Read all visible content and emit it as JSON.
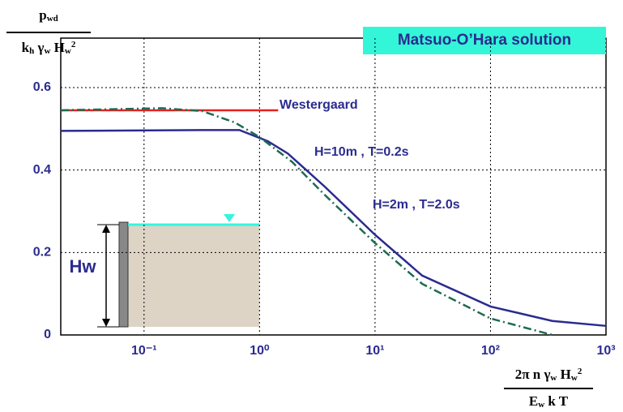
{
  "chart_data": {
    "type": "line",
    "title": "Matsuo-O’Hara solution",
    "ylabel": {
      "numerator": [
        {
          "text": "p",
          "style": "base"
        },
        {
          "text": "wd",
          "style": "sub"
        }
      ],
      "denominator": [
        {
          "text": "k",
          "style": "base"
        },
        {
          "text": "h",
          "style": "sub"
        },
        {
          "text": " γ",
          "style": "base"
        },
        {
          "text": "w",
          "style": "sub"
        },
        {
          "text": " H",
          "style": "base"
        },
        {
          "text": "w",
          "style": "sub"
        },
        {
          "text": "2",
          "style": "sup"
        }
      ]
    },
    "xlabel": {
      "numerator": [
        {
          "text": "2π n γ",
          "style": "base"
        },
        {
          "text": "w",
          "style": "sub"
        },
        {
          "text": " H",
          "style": "base"
        },
        {
          "text": "w",
          "style": "sub"
        },
        {
          "text": "2",
          "style": "sup"
        }
      ],
      "denominator": [
        {
          "text": "E",
          "style": "base"
        },
        {
          "text": "w",
          "style": "sub"
        },
        {
          "text": " k T",
          "style": "base"
        }
      ]
    },
    "xscale": "log",
    "xlim": [
      0.019,
      1000
    ],
    "ylim": [
      0,
      0.72
    ],
    "xticks": [
      {
        "value": 0.1,
        "label": "10⁻¹"
      },
      {
        "value": 1,
        "label": "10⁰"
      },
      {
        "value": 10,
        "label": "10¹"
      },
      {
        "value": 100,
        "label": "10²"
      },
      {
        "value": 1000,
        "label": "10³"
      }
    ],
    "yticks": [
      0,
      0.2,
      0.4,
      0.6
    ],
    "grid": true,
    "series": [
      {
        "name": "Westergaard",
        "color": "#e8201e",
        "dash": "solid",
        "x": [
          0.019,
          1.45
        ],
        "values": [
          0.545,
          0.545
        ]
      },
      {
        "name": "H=10m , T=0.2s",
        "color": "#2b2b8f",
        "dash": "solid",
        "x": [
          0.019,
          0.32,
          0.67,
          1.18,
          1.76,
          3.66,
          10,
          25.6,
          100,
          343,
          1000
        ],
        "values": [
          0.495,
          0.497,
          0.497,
          0.47,
          0.44,
          0.36,
          0.243,
          0.144,
          0.069,
          0.034,
          0.022
        ]
      },
      {
        "name": "H=2m , T=2.0s",
        "color": "#1e6b50",
        "dash": "dashdot",
        "x": [
          0.019,
          0.143,
          0.32,
          0.615,
          1,
          1.91,
          3.66,
          10,
          25.6,
          100,
          343
        ],
        "values": [
          0.545,
          0.55,
          0.543,
          0.515,
          0.48,
          0.42,
          0.34,
          0.223,
          0.124,
          0.04,
          0
        ]
      }
    ],
    "annotations": [
      "Hw"
    ]
  }
}
